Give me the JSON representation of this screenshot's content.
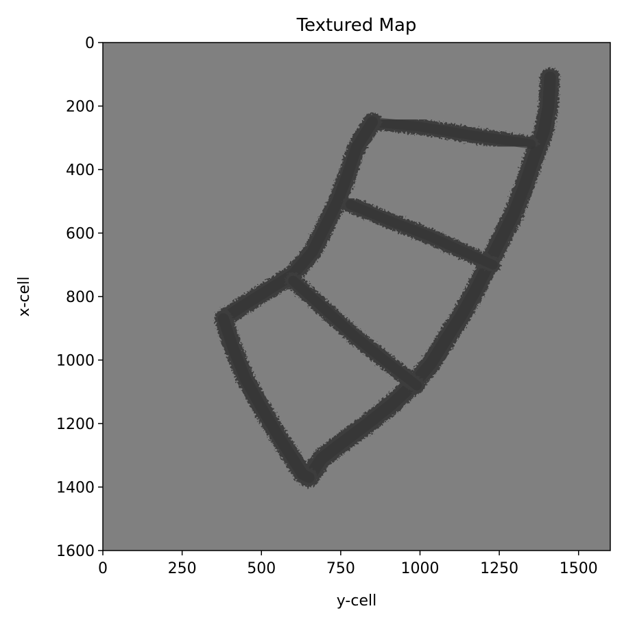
{
  "chart_data": {
    "type": "heatmap",
    "title": "Textured Map",
    "xlabel": "y-cell",
    "ylabel": "x-cell",
    "xlim": [
      0,
      1600
    ],
    "ylim": [
      1600,
      0
    ],
    "y_inverted": true,
    "xticks": [
      0,
      250,
      500,
      750,
      1000,
      1250,
      1500
    ],
    "yticks": [
      0,
      200,
      400,
      600,
      800,
      1000,
      1200,
      1400,
      1600
    ],
    "background_color": "#808080",
    "path_color": "#3d3d3d",
    "grid": false,
    "corridors": [
      {
        "name": "outer-right-arc",
        "points": [
          [
            1410,
            110
          ],
          [
            1405,
            200
          ],
          [
            1390,
            280
          ],
          [
            1360,
            360
          ],
          [
            1330,
            450
          ],
          [
            1295,
            540
          ],
          [
            1255,
            620
          ],
          [
            1215,
            700
          ],
          [
            1175,
            780
          ],
          [
            1130,
            860
          ],
          [
            1085,
            930
          ],
          [
            1035,
            1010
          ],
          [
            975,
            1080
          ],
          [
            910,
            1140
          ],
          [
            835,
            1200
          ],
          [
            755,
            1260
          ],
          [
            690,
            1310
          ],
          [
            650,
            1370
          ]
        ],
        "width": 62
      },
      {
        "name": "top-edge",
        "points": [
          [
            850,
            250
          ],
          [
            1000,
            265
          ],
          [
            1150,
            290
          ],
          [
            1350,
            320
          ]
        ],
        "width": 50
      },
      {
        "name": "left-upper-edge",
        "points": [
          [
            850,
            250
          ],
          [
            800,
            330
          ],
          [
            770,
            420
          ],
          [
            740,
            500
          ],
          [
            700,
            580
          ],
          [
            660,
            660
          ],
          [
            600,
            730
          ],
          [
            520,
            780
          ],
          [
            440,
            830
          ],
          [
            380,
            870
          ]
        ],
        "width": 58
      },
      {
        "name": "middle-upper-rung",
        "points": [
          [
            780,
            510
          ],
          [
            900,
            560
          ],
          [
            1030,
            610
          ],
          [
            1140,
            660
          ],
          [
            1230,
            700
          ]
        ],
        "width": 50
      },
      {
        "name": "middle-lower-rung",
        "points": [
          [
            600,
            750
          ],
          [
            700,
            840
          ],
          [
            800,
            930
          ],
          [
            900,
            1010
          ],
          [
            990,
            1080
          ]
        ],
        "width": 52
      },
      {
        "name": "left-lower-edge",
        "points": [
          [
            380,
            870
          ],
          [
            410,
            960
          ],
          [
            450,
            1060
          ],
          [
            500,
            1150
          ],
          [
            560,
            1250
          ],
          [
            630,
            1360
          ],
          [
            650,
            1370
          ]
        ],
        "width": 58
      }
    ]
  }
}
